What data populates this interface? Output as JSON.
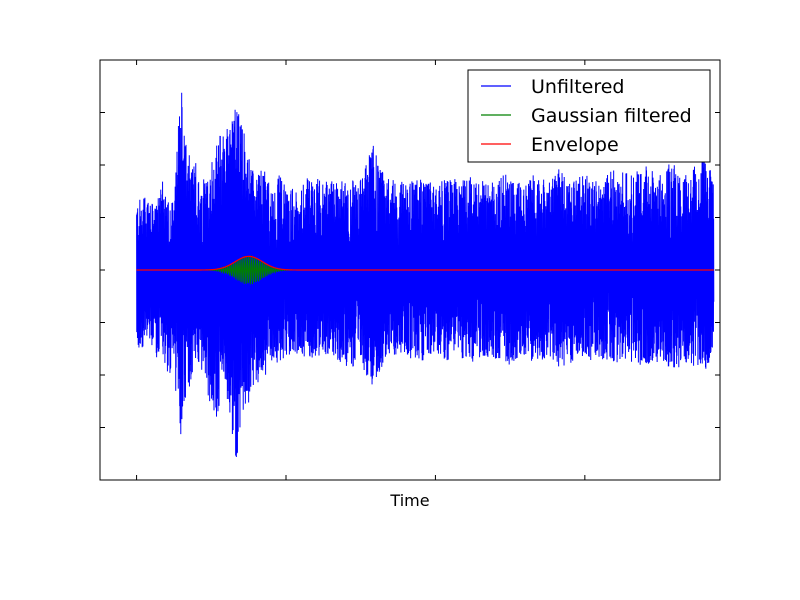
{
  "chart_data": {
    "type": "line",
    "title": "",
    "xlabel": "Time",
    "ylabel": "",
    "xlim": [
      0,
      1
    ],
    "ylim": [
      -1,
      1
    ],
    "x_ticks": [
      0.059,
      0.3,
      0.541,
      0.782
    ],
    "y_ticks": [
      -0.75,
      -0.5,
      -0.25,
      0,
      0.25,
      0.5,
      0.75
    ],
    "tick_labels_visible": false,
    "grid": false,
    "legend_position": "top-right",
    "series": [
      {
        "name": "Unfiltered",
        "color": "#0000ff",
        "x": [
          0.059,
          0.07,
          0.08,
          0.09,
          0.1,
          0.11,
          0.12,
          0.13,
          0.14,
          0.15,
          0.16,
          0.17,
          0.18,
          0.19,
          0.2,
          0.21,
          0.22,
          0.23,
          0.24,
          0.25,
          0.26,
          0.27,
          0.28,
          0.29,
          0.3,
          0.32,
          0.34,
          0.36,
          0.38,
          0.4,
          0.42,
          0.44,
          0.46,
          0.48,
          0.5,
          0.52,
          0.54,
          0.56,
          0.58,
          0.6,
          0.62,
          0.64,
          0.66,
          0.68,
          0.7,
          0.72,
          0.74,
          0.76,
          0.78,
          0.8,
          0.82,
          0.84,
          0.86,
          0.88,
          0.9,
          0.92,
          0.94,
          0.96,
          0.98,
          0.99
        ],
        "upper": [
          0.33,
          0.35,
          0.33,
          0.3,
          0.43,
          0.35,
          0.33,
          0.92,
          0.55,
          0.55,
          0.48,
          0.45,
          0.52,
          0.62,
          0.72,
          0.7,
          0.8,
          0.7,
          0.58,
          0.42,
          0.5,
          0.45,
          0.38,
          0.46,
          0.4,
          0.38,
          0.46,
          0.42,
          0.44,
          0.42,
          0.45,
          0.6,
          0.44,
          0.43,
          0.42,
          0.45,
          0.4,
          0.44,
          0.43,
          0.45,
          0.42,
          0.44,
          0.46,
          0.42,
          0.46,
          0.44,
          0.48,
          0.42,
          0.46,
          0.44,
          0.47,
          0.48,
          0.45,
          0.52,
          0.44,
          0.52,
          0.46,
          0.5,
          0.56,
          0.48
        ],
        "lower": [
          -0.38,
          -0.4,
          -0.36,
          -0.42,
          -0.4,
          -0.5,
          -0.55,
          -0.8,
          -0.6,
          -0.5,
          -0.46,
          -0.58,
          -0.7,
          -0.7,
          -0.5,
          -0.72,
          -0.93,
          -0.68,
          -0.65,
          -0.52,
          -0.55,
          -0.48,
          -0.46,
          -0.44,
          -0.42,
          -0.4,
          -0.45,
          -0.4,
          -0.42,
          -0.48,
          -0.44,
          -0.58,
          -0.42,
          -0.4,
          -0.42,
          -0.44,
          -0.4,
          -0.43,
          -0.42,
          -0.44,
          -0.41,
          -0.43,
          -0.45,
          -0.42,
          -0.44,
          -0.42,
          -0.46,
          -0.45,
          -0.42,
          -0.44,
          -0.43,
          -0.45,
          -0.44,
          -0.47,
          -0.44,
          -0.48,
          -0.46,
          -0.47,
          -0.48,
          -0.45
        ]
      },
      {
        "name": "Gaussian filtered",
        "color": "#008000",
        "center": 0.24,
        "width": 0.022,
        "amplitude": 0.07,
        "cycles_per_unit": 300
      },
      {
        "name": "Envelope",
        "color": "#ff0000",
        "center": 0.24,
        "width": 0.022,
        "amplitude": 0.065
      }
    ]
  }
}
